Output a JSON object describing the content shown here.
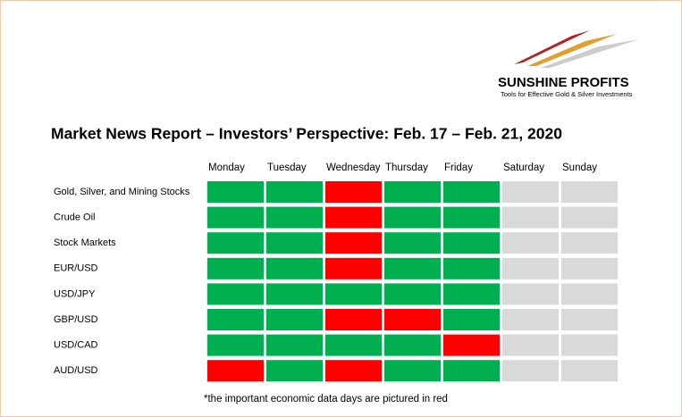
{
  "logo": {
    "name": "SUNSHINE PROFITS",
    "tagline": "Tools for Effective Gold & Silver Investments"
  },
  "title": "Market News Report – Investors’ Perspective: Feb. 17 – Feb. 21, 2020",
  "days": [
    "Monday",
    "Tuesday",
    "Wednesday",
    "Thursday",
    "Friday",
    "Saturday",
    "Sunday"
  ],
  "rows": [
    {
      "label": "Gold, Silver, and Mining Stocks",
      "cells": [
        "#00b050",
        "#00b050",
        "#ff0000",
        "#00b050",
        "#00b050",
        "#d9d9d9",
        "#d9d9d9"
      ]
    },
    {
      "label": "Crude Oil",
      "cells": [
        "#00b050",
        "#00b050",
        "#ff0000",
        "#00b050",
        "#00b050",
        "#d9d9d9",
        "#d9d9d9"
      ]
    },
    {
      "label": "Stock Markets",
      "cells": [
        "#00b050",
        "#00b050",
        "#ff0000",
        "#00b050",
        "#00b050",
        "#d9d9d9",
        "#d9d9d9"
      ]
    },
    {
      "label": "EUR/USD",
      "cells": [
        "#00b050",
        "#00b050",
        "#ff0000",
        "#00b050",
        "#00b050",
        "#d9d9d9",
        "#d9d9d9"
      ]
    },
    {
      "label": "USD/JPY",
      "cells": [
        "#00b050",
        "#00b050",
        "#00b050",
        "#00b050",
        "#00b050",
        "#d9d9d9",
        "#d9d9d9"
      ]
    },
    {
      "label": "GBP/USD",
      "cells": [
        "#00b050",
        "#00b050",
        "#ff0000",
        "#ff0000",
        "#00b050",
        "#d9d9d9",
        "#d9d9d9"
      ]
    },
    {
      "label": "USD/CAD",
      "cells": [
        "#00b050",
        "#00b050",
        "#00b050",
        "#00b050",
        "#ff0000",
        "#d9d9d9",
        "#d9d9d9"
      ]
    },
    {
      "label": "AUD/USD",
      "cells": [
        "#ff0000",
        "#00b050",
        "#ff0000",
        "#00b050",
        "#00b050",
        "#d9d9d9",
        "#d9d9d9"
      ]
    }
  ],
  "note": "*the important economic data days are pictured in red"
}
